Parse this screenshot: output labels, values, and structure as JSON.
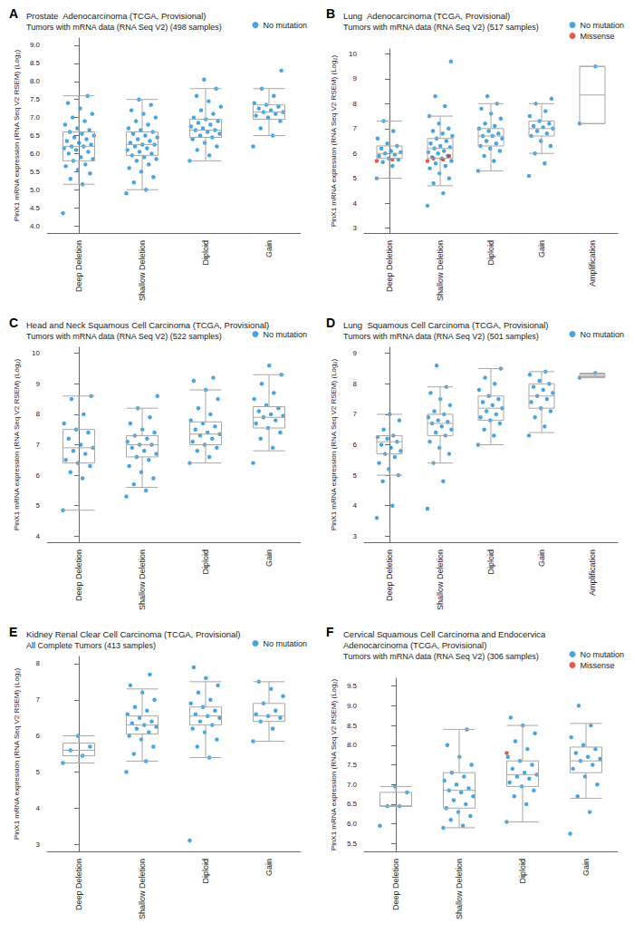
{
  "chart_data": [
    {
      "panel": "A",
      "type": "boxplot",
      "grid": false,
      "title": "Prostate  Adenocarcinoma (TCGA, Provisional)",
      "subtitle": "Tumors with mRNA data (RNA Seq V2) (498 samples)",
      "y_label": "PinX1 mRNA expression (RNA Seq V2 RSEM) (Log₂)",
      "categories": [
        "Deep Deletion",
        "Shallow Deletion",
        "Diploid",
        "Gain"
      ],
      "ylim": [
        3.8,
        9.2
      ],
      "yticks": [
        {
          "value": 4,
          "label": "4.0"
        },
        4.5,
        {
          "value": 5,
          "label": "5.0"
        },
        5.5,
        {
          "value": 6,
          "label": "6.0"
        },
        6.5,
        {
          "value": 7,
          "label": "7.0"
        },
        7.5,
        {
          "value": 8,
          "label": "8.0"
        },
        8.5,
        {
          "value": 9,
          "label": "9.0"
        }
      ],
      "boxes": [
        [
          5.15,
          5.8,
          6.2,
          6.6,
          7.6
        ],
        [
          5.0,
          5.95,
          6.25,
          6.6,
          7.5
        ],
        [
          5.8,
          6.45,
          6.65,
          6.95,
          7.8
        ],
        [
          6.5,
          6.95,
          7.15,
          7.35,
          7.8
        ]
      ],
      "series": [
        {
          "name": "No mutation",
          "color": "#1a8fd6",
          "marker": "circle",
          "values": [
            [
              4.35,
              5.15,
              5.3,
              5.45,
              5.55,
              5.65,
              5.7,
              5.8,
              5.85,
              5.9,
              6.0,
              6.05,
              6.1,
              6.15,
              6.2,
              6.2,
              6.25,
              6.3,
              6.35,
              6.4,
              6.45,
              6.5,
              6.55,
              6.6,
              6.65,
              6.7,
              6.8,
              6.9,
              7.0,
              7.1,
              7.25,
              7.4,
              7.6
            ],
            [
              4.9,
              5.0,
              5.2,
              5.35,
              5.5,
              5.6,
              5.7,
              5.8,
              5.85,
              5.9,
              5.95,
              6.0,
              6.05,
              6.1,
              6.15,
              6.2,
              6.25,
              6.25,
              6.3,
              6.35,
              6.4,
              6.45,
              6.5,
              6.55,
              6.6,
              6.65,
              6.7,
              6.8,
              6.9,
              7.0,
              7.1,
              7.2,
              7.35,
              7.5
            ],
            [
              5.8,
              5.95,
              6.1,
              6.2,
              6.3,
              6.4,
              6.45,
              6.5,
              6.55,
              6.6,
              6.65,
              6.65,
              6.7,
              6.75,
              6.8,
              6.85,
              6.9,
              6.95,
              7.0,
              7.1,
              7.2,
              7.3,
              7.45,
              7.6,
              7.8,
              8.05
            ],
            [
              6.2,
              6.5,
              6.7,
              6.9,
              7.0,
              7.05,
              7.1,
              7.15,
              7.15,
              7.2,
              7.25,
              7.3,
              7.35,
              7.4,
              7.6,
              7.8,
              8.3
            ]
          ]
        }
      ]
    },
    {
      "panel": "B",
      "type": "boxplot",
      "grid": false,
      "title": "Lung  Adenocarcinoma (TCGA, Provisional)",
      "subtitle": "Tumors with mRNA data (RNA Seq V2) (517 samples)",
      "y_label": "PinX1 mRNA expression (RNA Seq V2 RSEM) (Log₂)",
      "categories": [
        "Deep Deletion",
        "Shallow Deletion",
        "Diploid",
        "Gain",
        "Amplification"
      ],
      "ylim": [
        2.8,
        10.2
      ],
      "yticks": [
        3,
        4,
        5,
        6,
        7,
        8,
        9,
        10
      ],
      "boxes": [
        [
          5.0,
          5.8,
          6.0,
          6.3,
          7.3
        ],
        [
          4.7,
          5.8,
          6.2,
          6.6,
          7.5
        ],
        [
          5.3,
          6.3,
          6.7,
          7.0,
          8.0
        ],
        [
          6.0,
          6.7,
          7.0,
          7.3,
          8.0
        ],
        [
          7.2,
          7.2,
          8.35,
          9.5,
          9.5
        ]
      ],
      "series": [
        {
          "name": "No mutation",
          "color": "#1a8fd6",
          "marker": "circle",
          "values": [
            [
              5.0,
              5.5,
              5.65,
              5.75,
              5.8,
              5.9,
              5.95,
              6.0,
              6.05,
              6.1,
              6.2,
              6.3,
              6.4,
              6.6,
              6.9,
              7.3
            ],
            [
              3.9,
              4.4,
              4.8,
              5.0,
              5.2,
              5.4,
              5.5,
              5.6,
              5.7,
              5.8,
              5.85,
              5.9,
              6.0,
              6.05,
              6.1,
              6.2,
              6.25,
              6.3,
              6.4,
              6.5,
              6.6,
              6.7,
              6.8,
              6.9,
              7.0,
              7.2,
              7.5,
              7.9,
              8.3,
              9.7
            ],
            [
              5.3,
              5.7,
              5.9,
              6.1,
              6.2,
              6.3,
              6.4,
              6.5,
              6.6,
              6.7,
              6.7,
              6.8,
              6.9,
              7.0,
              7.1,
              7.2,
              7.4,
              7.6,
              7.8,
              8.0,
              8.3
            ],
            [
              5.1,
              5.6,
              6.0,
              6.3,
              6.5,
              6.7,
              6.8,
              6.9,
              7.0,
              7.05,
              7.1,
              7.2,
              7.3,
              7.5,
              7.7,
              8.0,
              8.2
            ],
            [
              7.2,
              9.5
            ]
          ]
        },
        {
          "name": "Missense",
          "color": "#e0302a",
          "marker": "circle",
          "values": [
            [
              5.7,
              5.75
            ],
            [
              5.7,
              5.75,
              5.8,
              5.9
            ],
            [],
            [],
            []
          ]
        }
      ]
    },
    {
      "panel": "C",
      "type": "boxplot",
      "grid": false,
      "title": "Head and Neck Squamous Cell Carcinoma (TCGA, Provisional)",
      "subtitle": "Tumors with mRNA data (RNA Seq V2) (522 samples)",
      "y_label": "PinX1 mRNA expression (RNA Seq V2 RSEM) (Log₂)",
      "categories": [
        "Deep Deletion",
        "Shallow Deletion",
        "Diploid",
        "Gain"
      ],
      "ylim": [
        3.8,
        10.2
      ],
      "yticks": [
        4,
        5,
        6,
        7,
        8,
        9,
        10
      ],
      "boxes": [
        [
          4.85,
          6.4,
          6.9,
          7.5,
          8.6
        ],
        [
          5.6,
          6.6,
          7.0,
          7.3,
          8.2
        ],
        [
          6.4,
          7.0,
          7.35,
          7.75,
          8.8
        ],
        [
          6.8,
          7.55,
          7.9,
          8.25,
          9.3
        ]
      ],
      "series": [
        {
          "name": "No mutation",
          "color": "#1a8fd6",
          "marker": "circle",
          "values": [
            [
              4.85,
              5.9,
              6.1,
              6.3,
              6.4,
              6.5,
              6.7,
              6.8,
              6.9,
              7.0,
              7.2,
              7.4,
              7.5,
              7.7,
              8.0,
              8.5,
              8.6
            ],
            [
              5.3,
              5.5,
              5.7,
              5.9,
              6.1,
              6.3,
              6.5,
              6.6,
              6.7,
              6.8,
              6.9,
              7.0,
              7.0,
              7.1,
              7.2,
              7.3,
              7.4,
              7.5,
              7.7,
              7.9,
              8.2,
              8.6
            ],
            [
              6.4,
              6.6,
              6.8,
              6.9,
              7.0,
              7.1,
              7.2,
              7.3,
              7.35,
              7.4,
              7.5,
              7.6,
              7.7,
              7.8,
              8.0,
              8.2,
              8.5,
              8.8,
              9.1,
              9.2
            ],
            [
              6.4,
              6.9,
              7.2,
              7.4,
              7.55,
              7.7,
              7.8,
              7.9,
              7.95,
              8.0,
              8.1,
              8.2,
              8.3,
              8.5,
              8.7,
              9.0,
              9.3,
              9.6
            ]
          ]
        }
      ]
    },
    {
      "panel": "D",
      "type": "boxplot",
      "grid": false,
      "title": "Lung  Squamous Cell Carcinoma (TCGA, Provisional)",
      "subtitle": "Tumors with mRNA data (RNA Seq V2) (501 samples)",
      "y_label": "PinX1 mRNA expression (RNA Seq V2 RSEM) (Log₂)",
      "categories": [
        "Deep Deletion",
        "Shallow Deletion",
        "Diploid",
        "Gain",
        "Amplification"
      ],
      "ylim": [
        2.8,
        9.2
      ],
      "yticks": [
        3,
        4,
        5,
        6,
        7,
        8,
        9
      ],
      "boxes": [
        [
          5.0,
          5.7,
          6.1,
          6.3,
          7.0
        ],
        [
          5.4,
          6.3,
          6.7,
          7.0,
          7.9
        ],
        [
          6.0,
          6.8,
          7.2,
          7.6,
          8.5
        ],
        [
          6.4,
          7.2,
          7.6,
          8.0,
          8.4
        ],
        [
          8.2,
          8.23,
          8.27,
          8.32,
          8.35
        ]
      ],
      "series": [
        {
          "name": "No mutation",
          "color": "#1a8fd6",
          "marker": "circle",
          "values": [
            [
              3.6,
              4.0,
              4.8,
              5.0,
              5.2,
              5.4,
              5.6,
              5.7,
              5.8,
              5.9,
              6.0,
              6.1,
              6.2,
              6.25,
              6.3,
              6.5,
              6.8,
              7.0
            ],
            [
              3.9,
              4.8,
              5.4,
              5.7,
              5.9,
              6.1,
              6.3,
              6.4,
              6.5,
              6.6,
              6.7,
              6.75,
              6.8,
              6.9,
              7.0,
              7.1,
              7.3,
              7.5,
              7.7,
              7.9,
              8.6
            ],
            [
              6.0,
              6.3,
              6.5,
              6.7,
              6.8,
              6.9,
              7.0,
              7.1,
              7.2,
              7.3,
              7.4,
              7.5,
              7.6,
              7.8,
              8.0,
              8.2,
              8.5
            ],
            [
              6.3,
              6.6,
              6.9,
              7.1,
              7.2,
              7.4,
              7.5,
              7.6,
              7.7,
              7.8,
              7.9,
              8.0,
              8.1,
              8.3,
              8.4
            ],
            [
              8.2,
              8.35
            ]
          ]
        }
      ]
    },
    {
      "panel": "E",
      "type": "boxplot",
      "grid": false,
      "title": "Kidney Renal Clear Cell Carcinoma (TCGA, Provisional)",
      "subtitle": "All Complete Tumors (413 samples)",
      "y_label": "PinX1 mRNA expression (RNA Seq V2 RSEM) (Log₂)",
      "categories": [
        "Deep Deletion",
        "Shallow Deletion",
        "Diploid",
        "Gain"
      ],
      "ylim": [
        2.8,
        8.2
      ],
      "yticks": [
        3,
        4,
        5,
        6,
        7,
        8
      ],
      "boxes": [
        [
          5.25,
          5.45,
          5.6,
          5.8,
          6.0
        ],
        [
          5.3,
          6.05,
          6.3,
          6.55,
          7.3
        ],
        [
          5.4,
          6.3,
          6.55,
          6.8,
          7.5
        ],
        [
          5.85,
          6.4,
          6.55,
          6.9,
          7.5
        ]
      ],
      "series": [
        {
          "name": "No mutation",
          "color": "#1a8fd6",
          "marker": "circle",
          "values": [
            [
              5.25,
              5.45,
              5.6,
              5.7,
              6.0
            ],
            [
              5.0,
              5.3,
              5.5,
              5.7,
              5.9,
              6.0,
              6.1,
              6.2,
              6.25,
              6.3,
              6.35,
              6.4,
              6.5,
              6.6,
              6.7,
              6.8,
              7.0,
              7.2,
              7.4,
              7.7
            ],
            [
              3.1,
              5.4,
              5.7,
              5.9,
              6.1,
              6.2,
              6.3,
              6.4,
              6.5,
              6.55,
              6.6,
              6.7,
              6.8,
              6.9,
              7.0,
              7.2,
              7.4,
              7.6,
              7.9
            ],
            [
              5.85,
              6.2,
              6.4,
              6.5,
              6.55,
              6.6,
              6.7,
              6.9,
              7.1,
              7.3,
              7.5
            ]
          ]
        }
      ]
    },
    {
      "panel": "F",
      "type": "boxplot",
      "grid": false,
      "title": "Cervical Squamous Cell Carcinoma and Endocervica\nAdenocarcinoma (TCGA, Provisional)",
      "subtitle": "Tumors with mRNA data (RNA Seq V2) (306 samples)",
      "y_label": "PinX1 mRNA expression (RNA Seq V2 RSEM) (Log₂)",
      "categories": [
        "Deep Deletion",
        "Shallow Deletion",
        "Diploid",
        "Gain"
      ],
      "ylim": [
        5.3,
        9.7
      ],
      "yticks": [
        5.5,
        {
          "value": 6,
          "label": "6.0"
        },
        6.5,
        {
          "value": 7,
          "label": "7.0"
        },
        7.5,
        {
          "value": 8,
          "label": "8.0"
        },
        8.5,
        {
          "value": 9,
          "label": "9.0"
        },
        9.5
      ],
      "boxes": [
        [
          6.45,
          6.45,
          6.45,
          6.8,
          6.95
        ],
        [
          5.9,
          6.4,
          6.85,
          7.3,
          8.4
        ],
        [
          6.05,
          6.95,
          7.25,
          7.6,
          8.5
        ],
        [
          6.65,
          7.3,
          7.6,
          7.95,
          8.55
        ]
      ],
      "series": [
        {
          "name": "No mutation",
          "color": "#1a8fd6",
          "marker": "circle",
          "values": [
            [
              5.95,
              6.45,
              6.45,
              6.8,
              6.95
            ],
            [
              5.9,
              5.95,
              6.1,
              6.2,
              6.3,
              6.4,
              6.5,
              6.6,
              6.7,
              6.8,
              6.85,
              6.9,
              7.0,
              7.1,
              7.2,
              7.3,
              7.5,
              7.7,
              8.0,
              8.4
            ],
            [
              6.05,
              6.5,
              6.7,
              6.85,
              6.95,
              7.05,
              7.15,
              7.2,
              7.25,
              7.3,
              7.4,
              7.5,
              7.6,
              7.7,
              7.9,
              8.1,
              8.3,
              8.5,
              8.7
            ],
            [
              5.75,
              6.3,
              6.7,
              7.0,
              7.2,
              7.4,
              7.5,
              7.6,
              7.65,
              7.7,
              7.8,
              7.9,
              8.0,
              8.2,
              8.5,
              9.0
            ]
          ]
        },
        {
          "name": "Missense",
          "color": "#e0302a",
          "marker": "circle",
          "values": [
            [],
            [],
            [
              7.8
            ],
            []
          ]
        }
      ]
    }
  ]
}
